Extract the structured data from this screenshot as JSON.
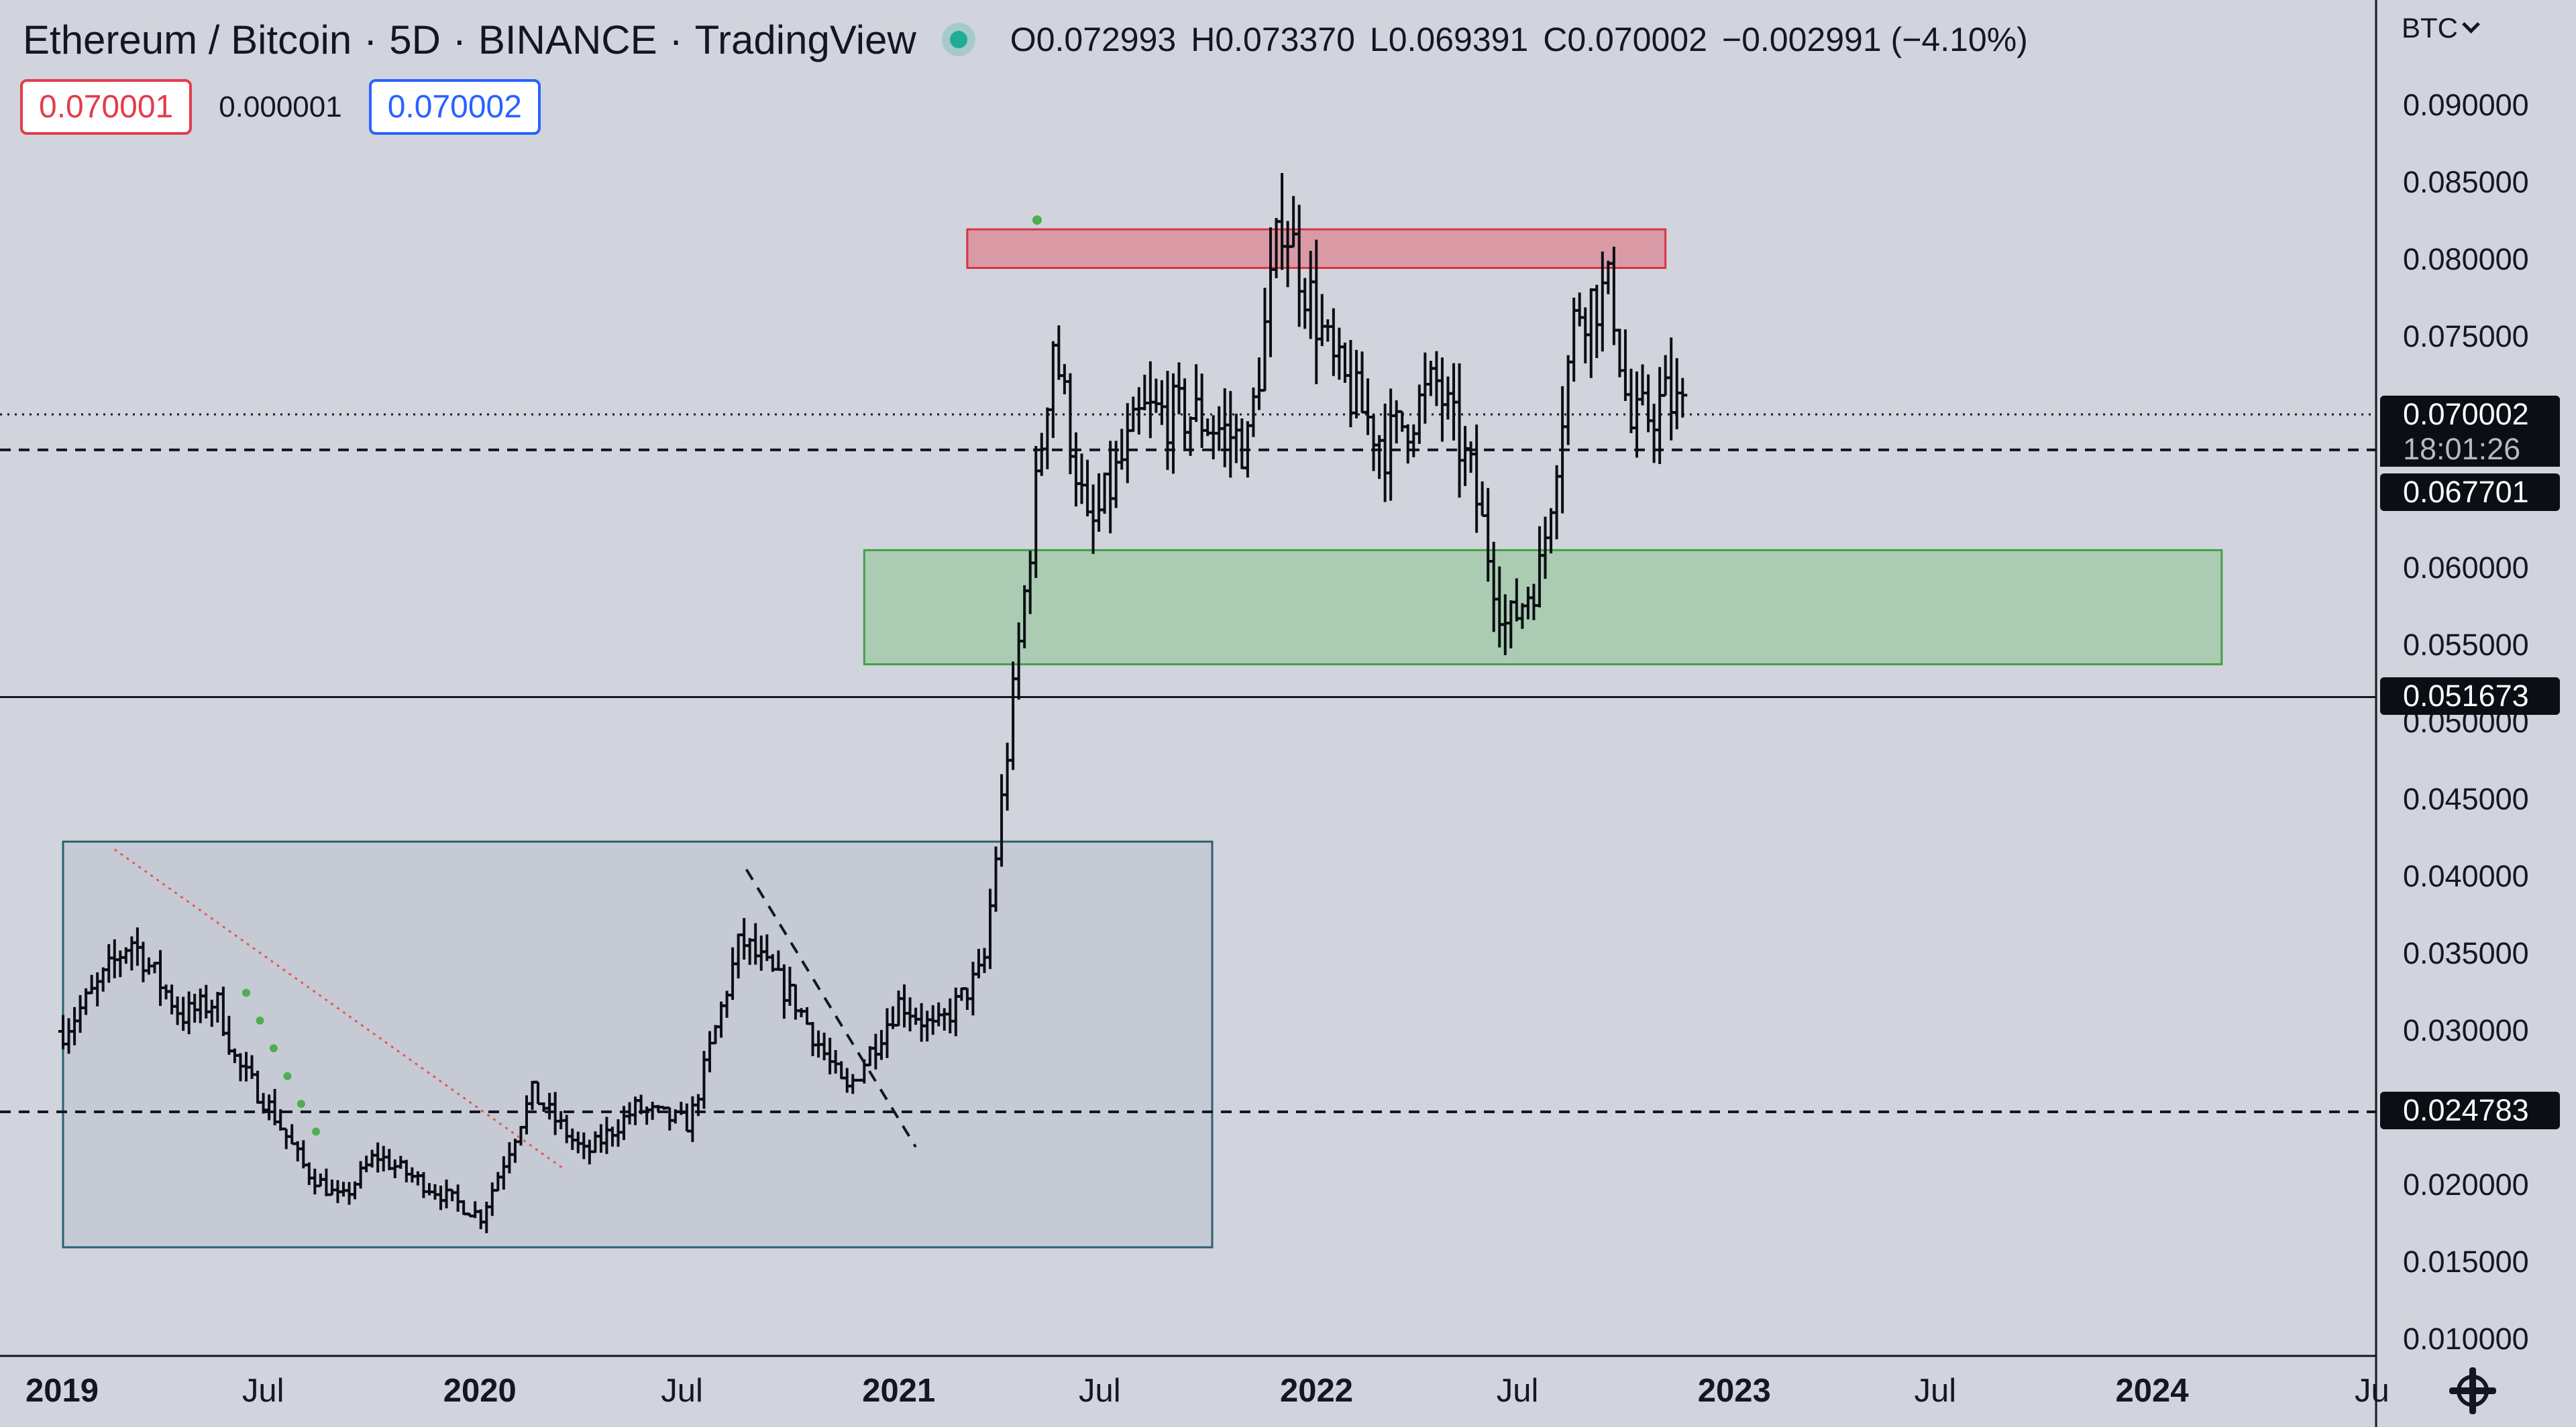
{
  "header": {
    "symbol": "Ethereum / Bitcoin",
    "sep1": "·",
    "interval": "5D",
    "sep2": "·",
    "exchange": "BINANCE",
    "sep3": "·",
    "source": "TradingView"
  },
  "ohlc": {
    "open": "O0.072993",
    "high": "H0.073370",
    "low": "L0.069391",
    "close": "C0.070002",
    "change": "−0.002991 (−4.10%)"
  },
  "quote": {
    "sell": "0.070001",
    "spread": "0.000001",
    "buy": "0.070002"
  },
  "currency": "BTC",
  "colors": {
    "background": "#d1d4dc",
    "candle": "#0b0e14",
    "resistance_zone": "#e06a7a",
    "support_zone": "#7cc47f",
    "consolidation_box": "#2c5f6f",
    "trendline_red": "#e6584f",
    "signal_dot": "#4caf50",
    "price_tag": "#0b0e14"
  },
  "price_axis": [
    "0.090000",
    "0.085000",
    "0.080000",
    "0.075000",
    "0.070000",
    "0.060000",
    "0.055000",
    "0.050000",
    "0.045000",
    "0.040000",
    "0.035000",
    "0.030000",
    "0.020000",
    "0.015000",
    "0.010000"
  ],
  "price_tags": {
    "current": "0.070002",
    "countdown": "18:01:26",
    "level_upper": "0.067701",
    "level_mid": "0.051673",
    "level_lower": "0.024783"
  },
  "time_axis": [
    {
      "label": "2019",
      "bold": true
    },
    {
      "label": "Jul",
      "bold": false
    },
    {
      "label": "2020",
      "bold": true
    },
    {
      "label": "Jul",
      "bold": false
    },
    {
      "label": "2021",
      "bold": true
    },
    {
      "label": "Jul",
      "bold": false
    },
    {
      "label": "2022",
      "bold": true
    },
    {
      "label": "Jul",
      "bold": false
    },
    {
      "label": "2023",
      "bold": true
    },
    {
      "label": "Jul",
      "bold": false
    },
    {
      "label": "2024",
      "bold": true
    },
    {
      "label": "Ju",
      "bold": false
    }
  ],
  "chart_data": {
    "type": "ohlc",
    "interval": "5D",
    "ylim": [
      0.01,
      0.09
    ],
    "xlim": [
      "2019-01",
      "2024-07"
    ],
    "anchors": [
      [
        "2019-01-01",
        0.03
      ],
      [
        "2019-02-01",
        0.033
      ],
      [
        "2019-03-01",
        0.036
      ],
      [
        "2019-04-15",
        0.031
      ],
      [
        "2019-05-15",
        0.032
      ],
      [
        "2019-06-01",
        0.028
      ],
      [
        "2019-07-01",
        0.025
      ],
      [
        "2019-08-01",
        0.021
      ],
      [
        "2019-09-01",
        0.019
      ],
      [
        "2019-10-01",
        0.022
      ],
      [
        "2019-11-15",
        0.02
      ],
      [
        "2020-01-01",
        0.018
      ],
      [
        "2020-02-15",
        0.026
      ],
      [
        "2020-04-01",
        0.022
      ],
      [
        "2020-05-15",
        0.025
      ],
      [
        "2020-07-01",
        0.024
      ],
      [
        "2020-08-15",
        0.036
      ],
      [
        "2020-10-01",
        0.032
      ],
      [
        "2020-11-15",
        0.026
      ],
      [
        "2021-01-01",
        0.032
      ],
      [
        "2021-02-01",
        0.03
      ],
      [
        "2021-03-15",
        0.034
      ],
      [
        "2021-04-15",
        0.055
      ],
      [
        "2021-05-15",
        0.075
      ],
      [
        "2021-06-15",
        0.062
      ],
      [
        "2021-08-01",
        0.07
      ],
      [
        "2021-09-15",
        0.07
      ],
      [
        "2021-11-01",
        0.068
      ],
      [
        "2021-12-01",
        0.083
      ],
      [
        "2022-01-15",
        0.073
      ],
      [
        "2022-03-01",
        0.068
      ],
      [
        "2022-04-15",
        0.072
      ],
      [
        "2022-05-15",
        0.066
      ],
      [
        "2022-06-15",
        0.056
      ],
      [
        "2022-07-15",
        0.06
      ],
      [
        "2022-08-15",
        0.077
      ],
      [
        "2022-09-15",
        0.078
      ],
      [
        "2022-10-01",
        0.069
      ],
      [
        "2022-11-01",
        0.071
      ],
      [
        "2022-11-20",
        0.07
      ]
    ],
    "zones": [
      {
        "name": "resistance",
        "from": "2021-03-01",
        "to": "2022-11-01",
        "low": 0.0795,
        "high": 0.082
      },
      {
        "name": "support",
        "from": "2020-12-01",
        "to": "2024-03-01",
        "low": 0.0538,
        "high": 0.0612
      },
      {
        "name": "range",
        "from": "2019-01-01",
        "to": "2021-10-01",
        "low": 0.016,
        "high": 0.0423
      }
    ],
    "horizontal_levels": [
      0.070002,
      0.067701,
      0.051673,
      0.024783
    ],
    "trendlines": [
      {
        "style": "dotted-red",
        "from": [
          "2019-02-15",
          0.0418
        ],
        "to": [
          "2020-03-15",
          0.021
        ]
      },
      {
        "style": "dashed",
        "from": [
          "2020-08-20",
          0.0405
        ],
        "to": [
          "2021-01-15",
          0.0225
        ]
      }
    ]
  }
}
